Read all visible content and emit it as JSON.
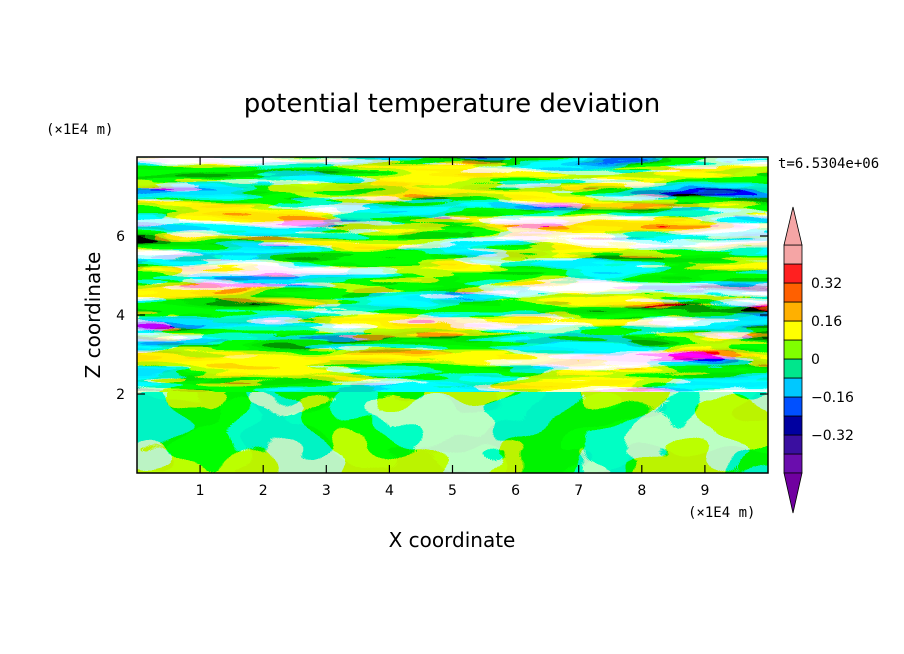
{
  "chart_data": {
    "type": "heatmap",
    "title": "potential temperature deviation",
    "xlabel": "X coordinate",
    "ylabel": "Z coordinate",
    "x_unit": "(×1E4 m)",
    "y_unit": "(×1E4 m)",
    "time_label": "t=6.5304e+06",
    "xlim": [
      0,
      10
    ],
    "ylim": [
      0,
      8
    ],
    "x_ticks": [
      1,
      2,
      3,
      4,
      5,
      6,
      7,
      8,
      9
    ],
    "y_ticks": [
      2,
      4,
      6
    ],
    "colorbar": {
      "levels": [
        -0.48,
        -0.4,
        -0.32,
        -0.24,
        -0.16,
        -0.08,
        0,
        0.08,
        0.16,
        0.24,
        0.32,
        0.4,
        0.48
      ],
      "tick_values": [
        0.32,
        0.16,
        0,
        -0.16,
        -0.32
      ],
      "tick_labels": [
        "0.32",
        "0.16",
        "0",
        "−0.16",
        "−0.32"
      ],
      "colors": [
        "#6a0dad",
        "#3a0fa0",
        "#0000a0",
        "#0050ff",
        "#00c8ff",
        "#00e68c",
        "#80ff00",
        "#ffff00",
        "#ffb000",
        "#ff6000",
        "#ff2020",
        "#f5a5a5"
      ],
      "under_color": "#7000a0",
      "over_color": "#f5a5a5"
    }
  }
}
